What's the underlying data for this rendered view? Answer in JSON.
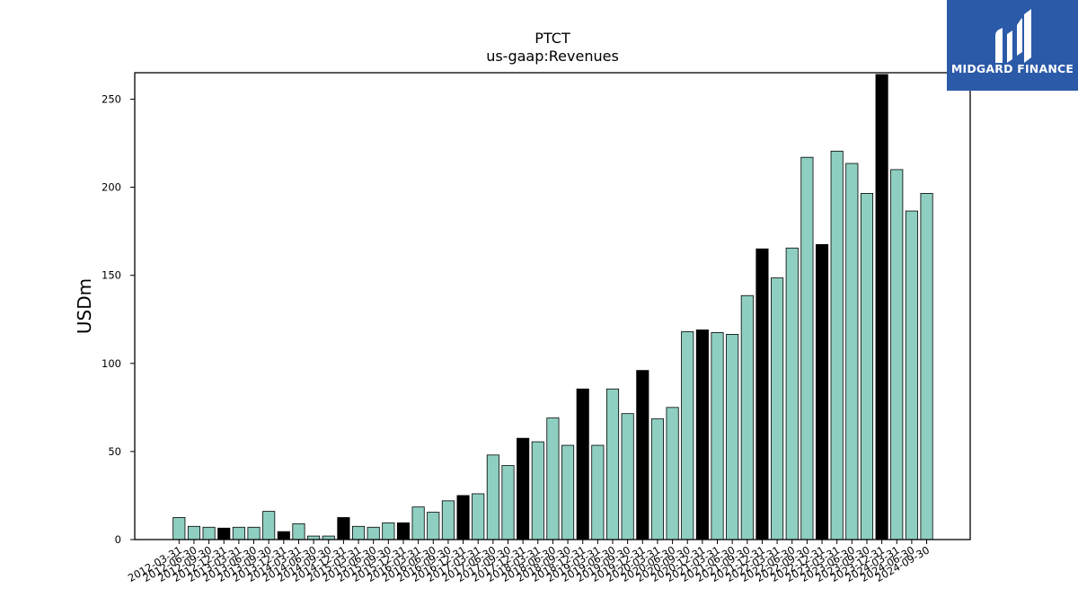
{
  "chart_data": {
    "type": "bar",
    "title": "PTCT",
    "subtitle": "us-gaap:Revenues",
    "xlabel": "",
    "ylabel": "USDm",
    "ylim": [
      0,
      265
    ],
    "yticks": [
      0,
      50,
      100,
      150,
      200,
      250
    ],
    "grid": false,
    "colors": {
      "quarterly": "#8ecfc1",
      "annual": "#000000"
    },
    "categories": [
      "2012-03-31",
      "2012-06-30",
      "2012-09-30",
      "2012-12-31",
      "2013-03-31",
      "2013-06-30",
      "2013-09-30",
      "2013-12-31",
      "2014-03-31",
      "2014-06-30",
      "2014-09-30",
      "2014-12-31",
      "2015-03-31",
      "2015-06-30",
      "2015-09-30",
      "2015-12-31",
      "2016-03-31",
      "2016-06-30",
      "2016-09-30",
      "2016-12-31",
      "2017-03-31",
      "2017-06-30",
      "2017-09-30",
      "2017-12-31",
      "2018-03-31",
      "2018-06-30",
      "2018-09-30",
      "2018-12-31",
      "2019-03-31",
      "2019-06-30",
      "2019-09-30",
      "2019-12-31",
      "2020-03-31",
      "2020-06-30",
      "2020-09-30",
      "2020-12-31",
      "2021-03-31",
      "2021-06-30",
      "2021-09-30",
      "2021-12-31",
      "2022-03-31",
      "2022-06-30",
      "2022-09-30",
      "2022-12-31",
      "2023-03-31",
      "2023-06-30",
      "2023-09-30",
      "2023-12-31",
      "2024-03-31",
      "2024-06-30",
      "2024-09-30"
    ],
    "values": [
      12.5,
      7.5,
      7,
      6.5,
      7,
      7,
      16,
      4.5,
      9,
      2,
      2,
      12.5,
      7.5,
      7,
      9.5,
      9.5,
      18.5,
      15.5,
      22,
      25,
      26,
      48,
      42,
      57.5,
      55.5,
      69,
      53.5,
      85.5,
      53.5,
      85.5,
      71.5,
      96,
      68.5,
      75,
      118,
      119,
      117.5,
      116.5,
      138.5,
      165,
      148.5,
      165.5,
      217,
      167.5,
      220.5,
      213.5,
      196.5,
      264,
      210,
      186.5,
      196.5
    ],
    "annual_flags": [
      0,
      0,
      0,
      1,
      0,
      0,
      0,
      1,
      0,
      0,
      0,
      1,
      0,
      0,
      0,
      1,
      0,
      0,
      0,
      1,
      0,
      0,
      0,
      1,
      0,
      0,
      0,
      1,
      0,
      0,
      0,
      1,
      0,
      0,
      0,
      1,
      0,
      0,
      0,
      1,
      0,
      0,
      0,
      1,
      0,
      0,
      0,
      1,
      0,
      0,
      0
    ]
  },
  "logo": {
    "text": "MIDGARD FINANCE"
  }
}
